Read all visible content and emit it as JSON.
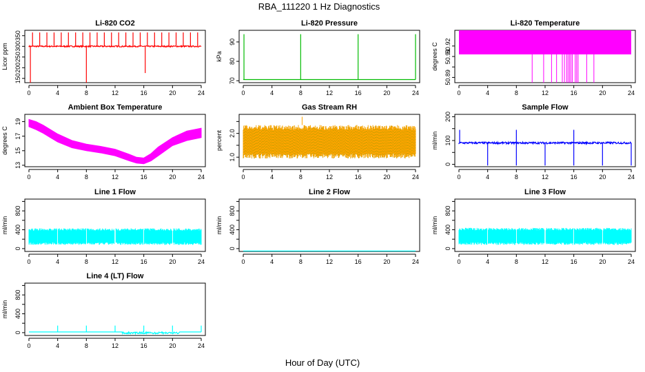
{
  "figure": {
    "title": "RBA_111220  1 Hz Diagnostics",
    "xlabel": "Hour of Day (UTC)"
  },
  "chart_data": [
    {
      "type": "line",
      "title": "Li-820 CO2",
      "ylabel": "Licor ppm",
      "color": "#ff0000",
      "xlim": [
        0,
        24
      ],
      "ylim": [
        130,
        375
      ],
      "xticks": [
        0,
        4,
        8,
        12,
        16,
        20,
        24
      ],
      "yticks": [
        150,
        200,
        250,
        300,
        350
      ],
      "series": [
        {
          "baseline": 300,
          "noise": 6,
          "dip_at": [
            0.2,
            8,
            16.2
          ],
          "dip_to": [
            130,
            130,
            175
          ],
          "spike_every": 1,
          "spike_to": 365
        }
      ]
    },
    {
      "type": "line",
      "title": "Li-820 Pressure",
      "ylabel": "kPa",
      "color": "#00bb00",
      "xlim": [
        0,
        24
      ],
      "ylim": [
        69,
        96
      ],
      "xticks": [
        0,
        4,
        8,
        12,
        16,
        20,
        24
      ],
      "yticks": [
        70,
        80,
        90
      ],
      "series": [
        {
          "baseline": 70.6,
          "spikes_at": [
            0.1,
            8,
            16,
            24
          ],
          "spike_to": 94
        }
      ]
    },
    {
      "type": "line",
      "title": "Li-820 Temperature",
      "ylabel": "degrees C",
      "color": "#ff00ff",
      "xlim": [
        0,
        24
      ],
      "ylim": [
        50.885,
        50.935
      ],
      "xticks": [
        0,
        4,
        8,
        12,
        16,
        20,
        24
      ],
      "yticks": [
        50.89,
        50.9,
        50.91,
        50.92
      ],
      "tick_labels": [
        "50.89",
        "",
        "50.91",
        "50.92"
      ],
      "series": [
        {
          "band": [
            50.912,
            50.935
          ],
          "drops_at": [
            10.2,
            11.8,
            12.9,
            13.6,
            14.4,
            14.7,
            15,
            15.2,
            15.4,
            15.6,
            15.8,
            16.2,
            16.4,
            16.6,
            17.8,
            18.8
          ],
          "drop_to": 50.885
        }
      ]
    },
    {
      "type": "area",
      "title": "Ambient Box Temperature",
      "ylabel": "degrees C",
      "color": "#ff00ff",
      "xlim": [
        0,
        24
      ],
      "ylim": [
        12.8,
        20
      ],
      "xticks": [
        0,
        4,
        8,
        12,
        16,
        20,
        24
      ],
      "yticks": [
        13,
        15,
        17,
        19
      ],
      "series": [
        {
          "x": [
            0,
            1,
            2,
            3,
            4,
            6,
            8,
            10,
            12,
            14,
            15,
            16,
            17,
            18,
            20,
            22,
            24
          ],
          "lo": [
            18.3,
            17.9,
            17.4,
            16.8,
            16.2,
            15.4,
            15.0,
            14.7,
            14.3,
            13.6,
            13.3,
            13.2,
            13.6,
            14.3,
            15.7,
            16.4,
            16.8
          ],
          "hi": [
            19.3,
            19.0,
            18.5,
            17.9,
            17.3,
            16.4,
            15.9,
            15.6,
            15.2,
            14.5,
            14.1,
            14.0,
            14.6,
            15.5,
            16.8,
            17.7,
            18.1
          ]
        }
      ]
    },
    {
      "type": "area",
      "title": "Gas Stream RH",
      "ylabel": "percent",
      "color": "#ffa500",
      "edge_color": "#999900",
      "xlim": [
        0,
        24
      ],
      "ylim": [
        0.6,
        2.8
      ],
      "xticks": [
        0,
        4,
        8,
        12,
        16,
        20,
        24
      ],
      "yticks": [
        1.0,
        1.5,
        2.0,
        2.5
      ],
      "tick_labels": [
        "1.0",
        "",
        "2.0",
        ""
      ],
      "series": [
        {
          "lo": 0.95,
          "hi": 2.35,
          "spike_at": 8.2,
          "spike_to": 2.7
        }
      ]
    },
    {
      "type": "line",
      "title": "Sample Flow",
      "ylabel": "ml/min",
      "color": "#0000ff",
      "xlim": [
        0,
        24
      ],
      "ylim": [
        -10,
        210
      ],
      "xticks": [
        0,
        4,
        8,
        12,
        16,
        20,
        24
      ],
      "yticks": [
        0,
        50,
        100,
        150,
        200
      ],
      "tick_labels": [
        "0",
        "",
        "100",
        "",
        "200"
      ],
      "series": [
        {
          "baseline": 90,
          "noise": 8,
          "dips_at": [
            4,
            8,
            12,
            16,
            20,
            24
          ],
          "dip_to": -5,
          "spikes_at": [
            0.1,
            8,
            16
          ],
          "spike_to": 145
        }
      ]
    },
    {
      "type": "area",
      "title": "Line 1 Flow",
      "ylabel": "ml/min",
      "color": "#00ffff",
      "xlim": [
        0,
        24
      ],
      "ylim": [
        -60,
        1050
      ],
      "xticks": [
        0,
        4,
        8,
        12,
        16,
        20,
        24
      ],
      "yticks": [
        0,
        200,
        400,
        600,
        800,
        1000
      ],
      "tick_labels": [
        "0",
        "",
        "400",
        "",
        "800",
        ""
      ],
      "series": [
        {
          "lo": 80,
          "hi": 430,
          "gaps_at": [
            4,
            8,
            12,
            16,
            20
          ]
        }
      ]
    },
    {
      "type": "line",
      "title": "Line 2 Flow",
      "ylabel": "ml/min",
      "color": "#00ffff",
      "xlim": [
        0,
        24
      ],
      "ylim": [
        -60,
        1050
      ],
      "xticks": [
        0,
        4,
        8,
        12,
        16,
        20,
        24
      ],
      "yticks": [
        0,
        200,
        400,
        600,
        800,
        1000
      ],
      "tick_labels": [
        "0",
        "",
        "400",
        "",
        "800",
        ""
      ],
      "series": [
        {
          "baseline": -50
        }
      ]
    },
    {
      "type": "area",
      "title": "Line 3 Flow",
      "ylabel": "ml/min",
      "color": "#00ffff",
      "xlim": [
        0,
        24
      ],
      "ylim": [
        -60,
        1050
      ],
      "xticks": [
        0,
        4,
        8,
        12,
        16,
        20,
        24
      ],
      "yticks": [
        0,
        200,
        400,
        600,
        800,
        1000
      ],
      "tick_labels": [
        "0",
        "",
        "400",
        "",
        "800",
        ""
      ],
      "series": [
        {
          "lo": 80,
          "hi": 440,
          "gaps_at": [
            4,
            8,
            12,
            16,
            20
          ]
        }
      ]
    },
    {
      "type": "line",
      "title": "Line 4 (LT) Flow",
      "ylabel": "ml/min",
      "color": "#00ffff",
      "xlim": [
        0,
        24
      ],
      "ylim": [
        -60,
        1050
      ],
      "xticks": [
        0,
        4,
        8,
        12,
        16,
        20,
        24
      ],
      "yticks": [
        0,
        200,
        400,
        600,
        800,
        1000
      ],
      "tick_labels": [
        "0",
        "",
        "400",
        "",
        "800",
        ""
      ],
      "series": [
        {
          "baseline": 15,
          "spikes_at": [
            4,
            8,
            12,
            16,
            20,
            24
          ],
          "spike_to": 150,
          "noisy_range": [
            13,
            21
          ]
        }
      ]
    }
  ]
}
